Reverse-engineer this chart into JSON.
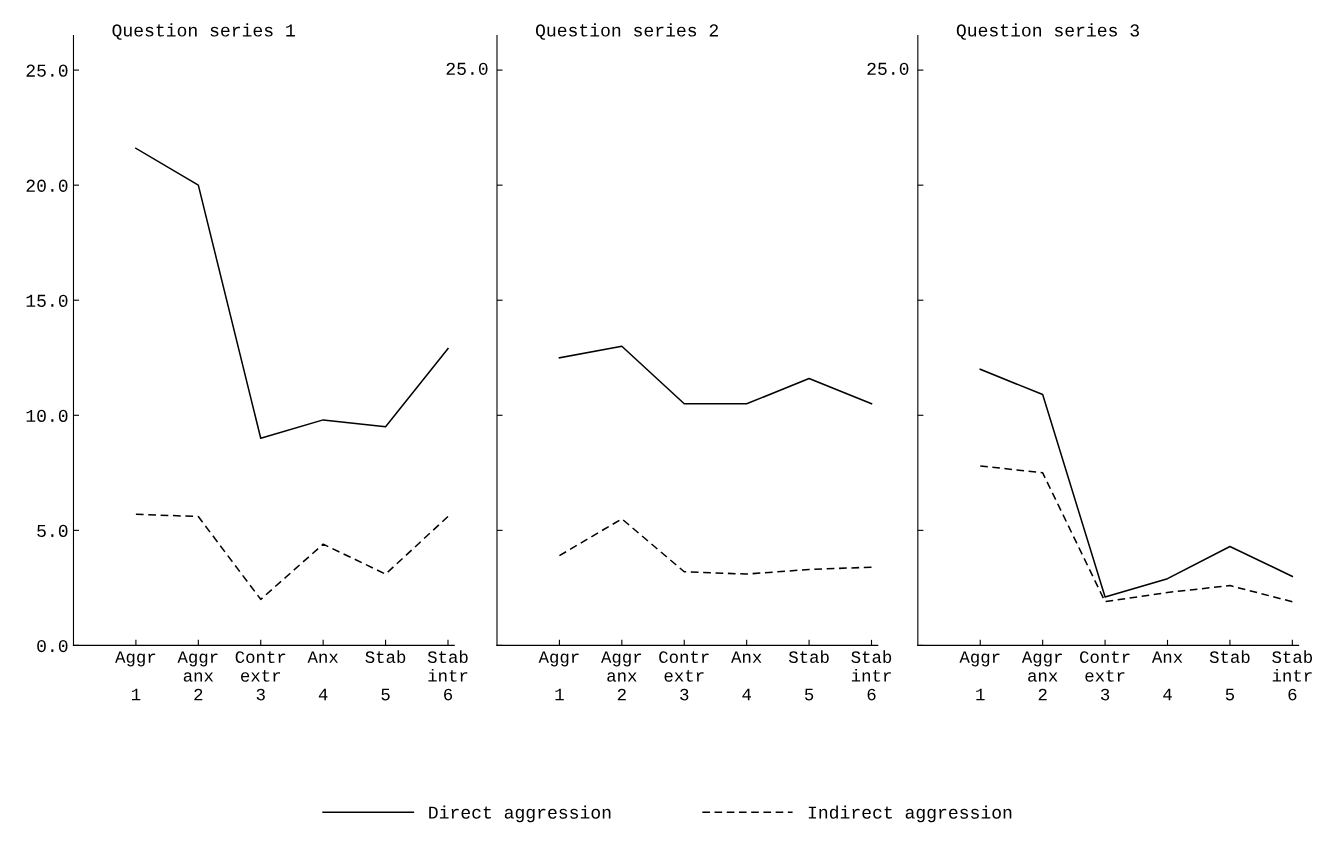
{
  "chart_data": [
    {
      "type": "line",
      "title": "Question series 1",
      "categories": [
        "Aggr\n\n1",
        "Aggr\nanx\n2",
        "Contr\nextr\n3",
        "Anx\n\n4",
        "Stab\n\n5",
        "Stab\nintr\n6"
      ],
      "series": [
        {
          "name": "Direct aggression",
          "color": "#000000",
          "line_style": "solid",
          "values": [
            21.6,
            20.0,
            9.0,
            9.8,
            9.5,
            12.9
          ]
        },
        {
          "name": "Indirect aggression",
          "color": "#000000",
          "line_style": "dashed",
          "values": [
            5.7,
            5.6,
            2.0,
            4.4,
            3.1,
            5.6
          ]
        }
      ],
      "ylim": [
        0,
        26.5
      ],
      "yticks": [
        {
          "value": 0,
          "label": "0.0"
        },
        {
          "value": 5,
          "label": "5.0"
        },
        {
          "value": 10,
          "label": "10.0"
        },
        {
          "value": 15,
          "label": "15.0"
        },
        {
          "value": 20,
          "label": "20.0"
        },
        {
          "value": 25,
          "label": "25.0"
        }
      ],
      "grid": false,
      "legend": "bottom",
      "marker": "none"
    },
    {
      "type": "line",
      "title": "Question series 2",
      "categories": [
        "Aggr\n\n1",
        "Aggr\nanx\n2",
        "Contr\nextr\n3",
        "Anx\n\n4",
        "Stab\n\n5",
        "Stab\nintr\n6"
      ],
      "series": [
        {
          "color": "#000000",
          "line_style": "solid",
          "values": [
            12.5,
            13.0,
            10.5,
            10.5,
            11.6,
            10.5
          ]
        },
        {
          "color": "#000000",
          "line_style": "dashed",
          "values": [
            3.9,
            5.5,
            3.2,
            3.1,
            3.3,
            3.4
          ]
        }
      ],
      "ylim": [
        0,
        26.5
      ],
      "yticks": [
        {
          "value": 0,
          "label": null
        },
        {
          "value": 5,
          "label": null
        },
        {
          "value": 10,
          "label": null
        },
        {
          "value": 15,
          "label": null
        },
        {
          "value": 20,
          "label": null
        },
        {
          "value": 25,
          "label": null
        }
      ],
      "tick_labels": "x",
      "annotations": [
        "25.0"
      ],
      "grid": false,
      "marker": "none"
    },
    {
      "type": "line",
      "title": "Question series 3",
      "categories": [
        "Aggr\n\n1",
        "Aggr\nanx\n2",
        "Contr\nextr\n3",
        "Anx\n\n4",
        "Stab\n\n5",
        "Stab\nintr\n6"
      ],
      "series": [
        {
          "color": "#000000",
          "line_style": "solid",
          "values": [
            12.0,
            10.9,
            2.1,
            2.9,
            4.3,
            3.0
          ]
        },
        {
          "color": "#000000",
          "line_style": "dashed",
          "values": [
            7.8,
            7.5,
            1.9,
            2.3,
            2.6,
            1.9
          ]
        }
      ],
      "ylim": [
        0,
        26.5
      ],
      "yticks": [
        {
          "value": 0,
          "label": null
        },
        {
          "value": 5,
          "label": null
        },
        {
          "value": 10,
          "label": null
        },
        {
          "value": 15,
          "label": null
        },
        {
          "value": 20,
          "label": null
        },
        {
          "value": 25,
          "label": null
        }
      ],
      "tick_labels": "x",
      "annotations": [
        "25.0"
      ],
      "grid": false,
      "marker": "none"
    }
  ]
}
